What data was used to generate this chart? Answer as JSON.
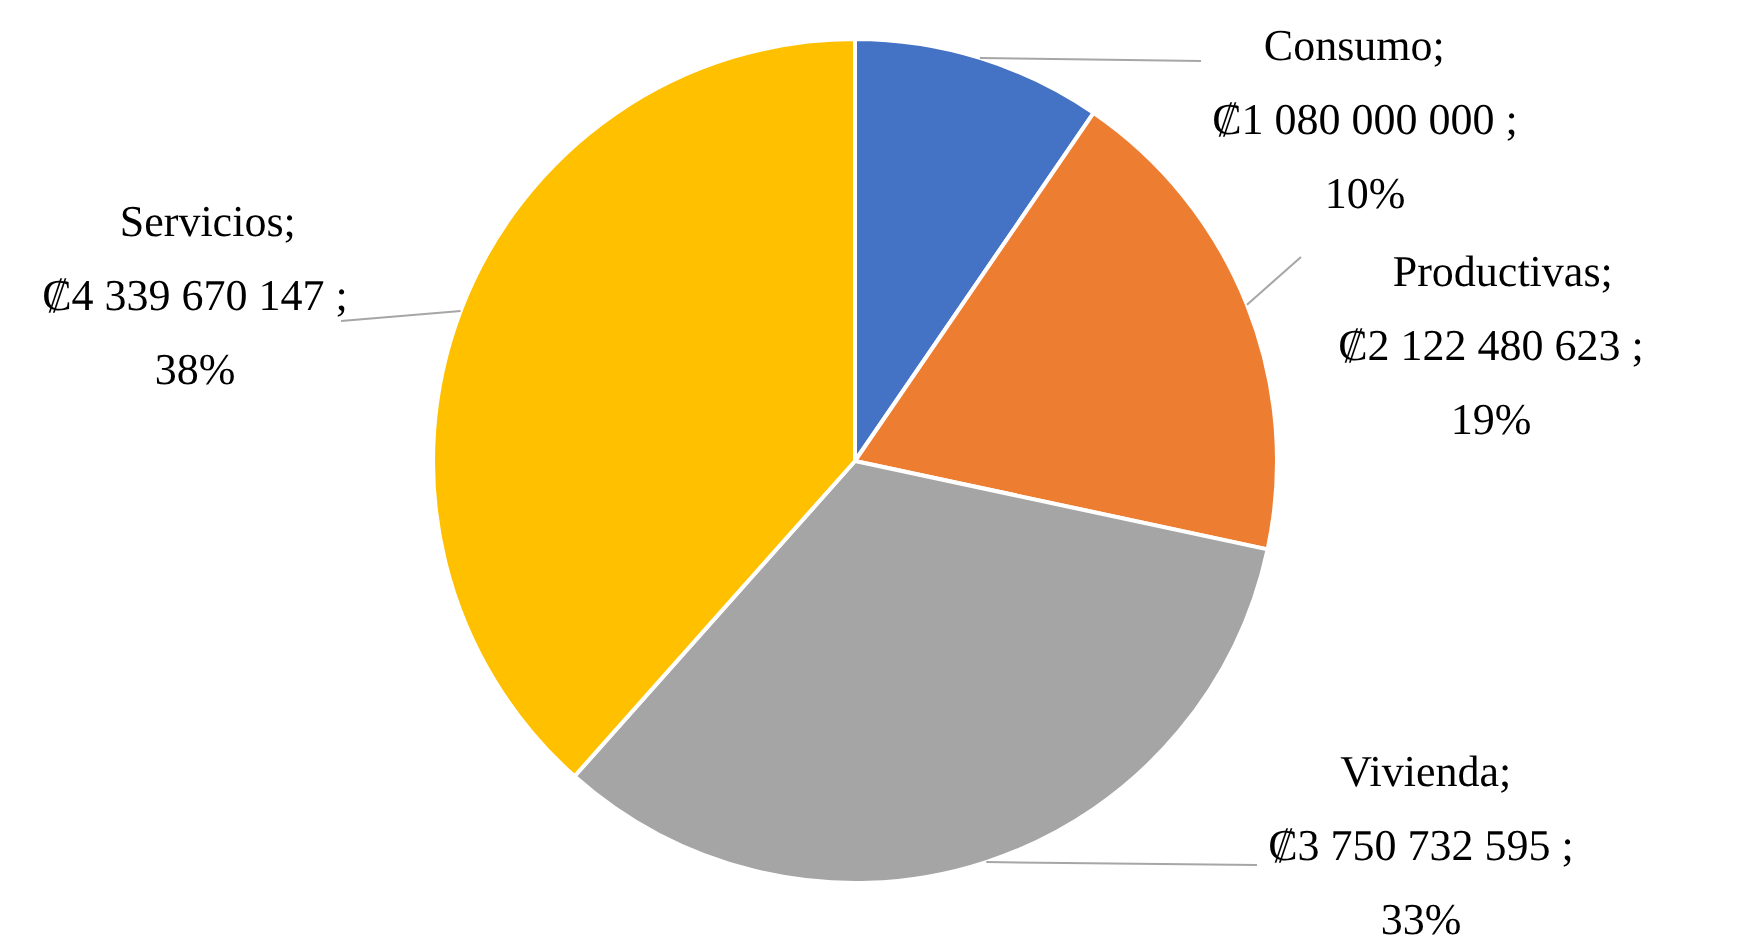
{
  "chart_data": {
    "type": "pie",
    "categories": [
      "Consumo",
      "Productivas",
      "Vivienda",
      "Servicios"
    ],
    "values": [
      1080000000,
      2122480623,
      3750732595,
      4339670147
    ],
    "colors": [
      "#4472c4",
      "#ed7d31",
      "#a5a5a5",
      "#ffc000"
    ],
    "value_labels": [
      "; ₡1 080 000 000 ; 10%",
      "; ₡2 122 480 623 ; 19%",
      "; ₡3 750 732 595 ; 33%",
      "; ₡4 339 670 147 ; 38%"
    ]
  }
}
